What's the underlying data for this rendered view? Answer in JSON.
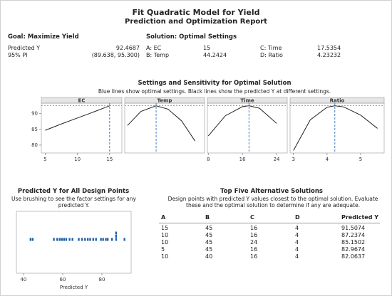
{
  "header": {
    "title": "Fit Quadratic Model for Yield",
    "subtitle": "Prediction and Optimization Report"
  },
  "goal": {
    "title": "Goal: Maximize Yield",
    "rows": [
      {
        "label": "Predicted Y",
        "value": 92.4687
      },
      {
        "label": "95% PI",
        "value": "(89.638, 95.300)"
      }
    ]
  },
  "solution": {
    "title": "Solution: Optimal Settings",
    "settings": [
      {
        "label": "A: EC",
        "value": 15
      },
      {
        "label": "B: Temp",
        "value": 44.2424
      },
      {
        "label": "C: Time",
        "value": 17.5354
      },
      {
        "label": "D: Ratio",
        "value": 4.23232
      }
    ]
  },
  "sensitivity": {
    "title": "Settings and Sensitivity for Optimal Solution",
    "subtitle": "Blue lines show optimal settings. Black lines show the predicted Y at different settings.",
    "optimal_color": "#2f6fbf"
  },
  "chart_data": [
    {
      "type": "line",
      "title": "EC",
      "x": [
        5,
        7.5,
        10,
        12.5,
        15
      ],
      "values": [
        84.7,
        86.7,
        88.6,
        90.5,
        92.47
      ],
      "color": "#222222",
      "xlim": [
        4.4,
        16.9
      ],
      "xticks": [
        5,
        10,
        15
      ],
      "ylim": [
        77.5,
        93.3
      ],
      "yticks": [
        80,
        85,
        90
      ]
    },
    {
      "type": "line",
      "title": "Temp",
      "x": [
        40,
        42,
        44.2424,
        46,
        48,
        50
      ],
      "values": [
        86.2,
        90.7,
        92.47,
        91.4,
        87.7,
        81.3
      ],
      "color": "#222222",
      "xlim": [
        39.6,
        51.4
      ],
      "ylim": [
        77.5,
        93.3
      ]
    },
    {
      "type": "line",
      "title": "Time",
      "x": [
        8,
        12,
        16,
        17.5354,
        20,
        24
      ],
      "values": [
        82.9,
        89.3,
        92.2,
        92.47,
        91.7,
        86.9
      ],
      "color": "#222222",
      "xticks": [
        8,
        16,
        24
      ],
      "xlim": [
        7.8,
        26.5
      ],
      "ylim": [
        77.5,
        93.3
      ]
    },
    {
      "type": "line",
      "title": "Ratio",
      "x": [
        3,
        3.5,
        4,
        4.23232,
        4.5,
        5,
        5.5
      ],
      "values": [
        78.3,
        88.0,
        92.0,
        92.47,
        92.1,
        89.5,
        85.3
      ],
      "color": "#222222",
      "xlim": [
        2.9,
        5.7
      ],
      "xticks": [
        3,
        4,
        5
      ],
      "ylim": [
        77.5,
        93.3
      ]
    },
    {
      "type": "dotplot",
      "title": "Predicted Y for All Design Points",
      "subtitle": "Use brushing to see the factor settings for any predicted Y.",
      "x_label": "Predicted Y",
      "color": "#1f5fa8",
      "values": [
        43.6,
        44.7,
        55.5,
        57.2,
        58.5,
        59.6,
        60.7,
        61.8,
        63.5,
        65.0,
        68.2,
        69.9,
        71.4,
        72.8,
        74.0,
        75.6,
        77.0,
        79.5,
        80.6,
        82.0,
        82.9674,
        85.1502,
        87.2374,
        87.2374,
        87.2374,
        91.5074
      ],
      "xlim": [
        36.4,
        94.9
      ],
      "xticks": [
        40,
        60,
        80
      ]
    }
  ],
  "alternatives": {
    "title": "Top Five Alternative Solutions",
    "subtitle": "Design points with predicted Y values closest to the optimal solution. Evaluate these and the optimal solution to determine if any are adequate.",
    "columns": [
      "A",
      "B",
      "C",
      "D",
      "Predicted Y"
    ],
    "rows": [
      [
        "15",
        "45",
        "16",
        "4",
        "91.5074"
      ],
      [
        "10",
        "45",
        "16",
        "4",
        "87.2374"
      ],
      [
        "10",
        "45",
        "24",
        "4",
        "85.1502"
      ],
      [
        "5",
        "45",
        "16",
        "4",
        "82.9674"
      ],
      [
        "10",
        "40",
        "16",
        "4",
        "82.0637"
      ]
    ]
  }
}
